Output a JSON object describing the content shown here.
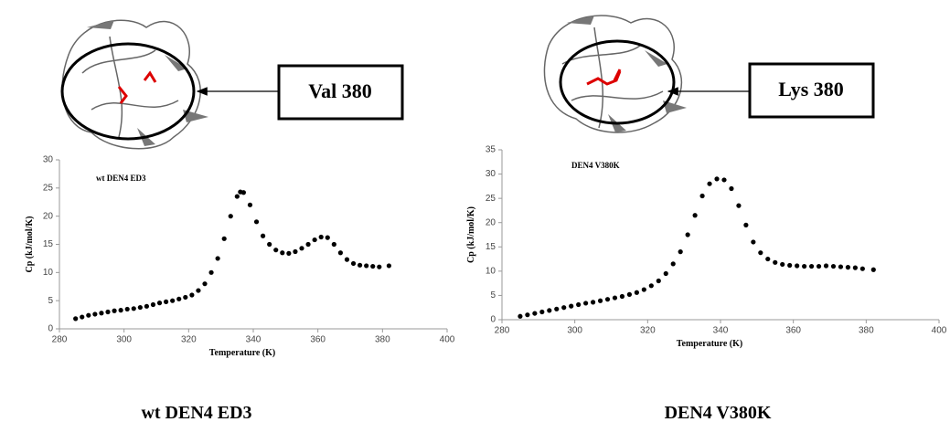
{
  "chart_data": [
    {
      "type": "scatter",
      "title": "wt DEN4 ED3",
      "caption": "wt DEN4 ED3",
      "callout": "Val 380",
      "x_label": "Temperature (K)",
      "y_label": "Cp (kJ/mol/K)",
      "color": "#000000",
      "xlim": [
        280,
        400
      ],
      "xticks": [
        280,
        300,
        320,
        340,
        360,
        380,
        400
      ],
      "ylim": [
        0,
        30
      ],
      "yticks": [
        0,
        5,
        10,
        15,
        20,
        25,
        30
      ],
      "x": [
        285,
        287,
        289,
        291,
        293,
        295,
        297,
        299,
        301,
        303,
        305,
        307,
        309,
        311,
        313,
        315,
        317,
        319,
        321,
        323,
        325,
        327,
        329,
        331,
        333,
        335,
        336,
        337,
        339,
        341,
        343,
        345,
        347,
        349,
        351,
        353,
        355,
        357,
        359,
        361,
        363,
        365,
        367,
        369,
        371,
        373,
        375,
        377,
        379,
        382
      ],
      "values": [
        1.8,
        2.1,
        2.4,
        2.6,
        2.8,
        3.0,
        3.2,
        3.3,
        3.5,
        3.6,
        3.8,
        4.0,
        4.3,
        4.6,
        4.8,
        5.0,
        5.3,
        5.6,
        6.0,
        6.8,
        8.0,
        10.0,
        12.5,
        16.0,
        20.0,
        23.5,
        24.3,
        24.2,
        22.0,
        19.0,
        16.5,
        15.0,
        14.0,
        13.5,
        13.4,
        13.7,
        14.3,
        15.0,
        15.8,
        16.3,
        16.2,
        15.0,
        13.5,
        12.3,
        11.6,
        11.3,
        11.2,
        11.1,
        11.0,
        11.2
      ]
    },
    {
      "type": "scatter",
      "title": "DEN4  V380K",
      "caption": "DEN4 V380K",
      "callout": "Lys 380",
      "x_label": "Temperature (K)",
      "y_label": "Cp (kJ/mol/K)",
      "color": "#000000",
      "xlim": [
        280,
        400
      ],
      "xticks": [
        280,
        300,
        320,
        340,
        360,
        380,
        400
      ],
      "ylim": [
        0,
        35
      ],
      "yticks": [
        0,
        5,
        10,
        15,
        20,
        25,
        30,
        35
      ],
      "x": [
        285,
        287,
        289,
        291,
        293,
        295,
        297,
        299,
        301,
        303,
        305,
        307,
        309,
        311,
        313,
        315,
        317,
        319,
        321,
        323,
        325,
        327,
        329,
        331,
        333,
        335,
        337,
        339,
        341,
        343,
        345,
        347,
        349,
        351,
        353,
        355,
        357,
        359,
        361,
        363,
        365,
        367,
        369,
        371,
        373,
        375,
        377,
        379,
        382
      ],
      "values": [
        0.7,
        1.0,
        1.3,
        1.6,
        1.9,
        2.2,
        2.5,
        2.8,
        3.1,
        3.4,
        3.6,
        3.9,
        4.2,
        4.5,
        4.8,
        5.2,
        5.6,
        6.2,
        7.0,
        8.0,
        9.5,
        11.5,
        14.0,
        17.5,
        21.5,
        25.5,
        28.0,
        29.0,
        28.8,
        27.0,
        23.5,
        19.5,
        16.0,
        13.8,
        12.5,
        11.8,
        11.4,
        11.2,
        11.1,
        11.0,
        11.0,
        11.0,
        11.1,
        11.0,
        10.9,
        10.8,
        10.7,
        10.5,
        10.3
      ]
    }
  ]
}
